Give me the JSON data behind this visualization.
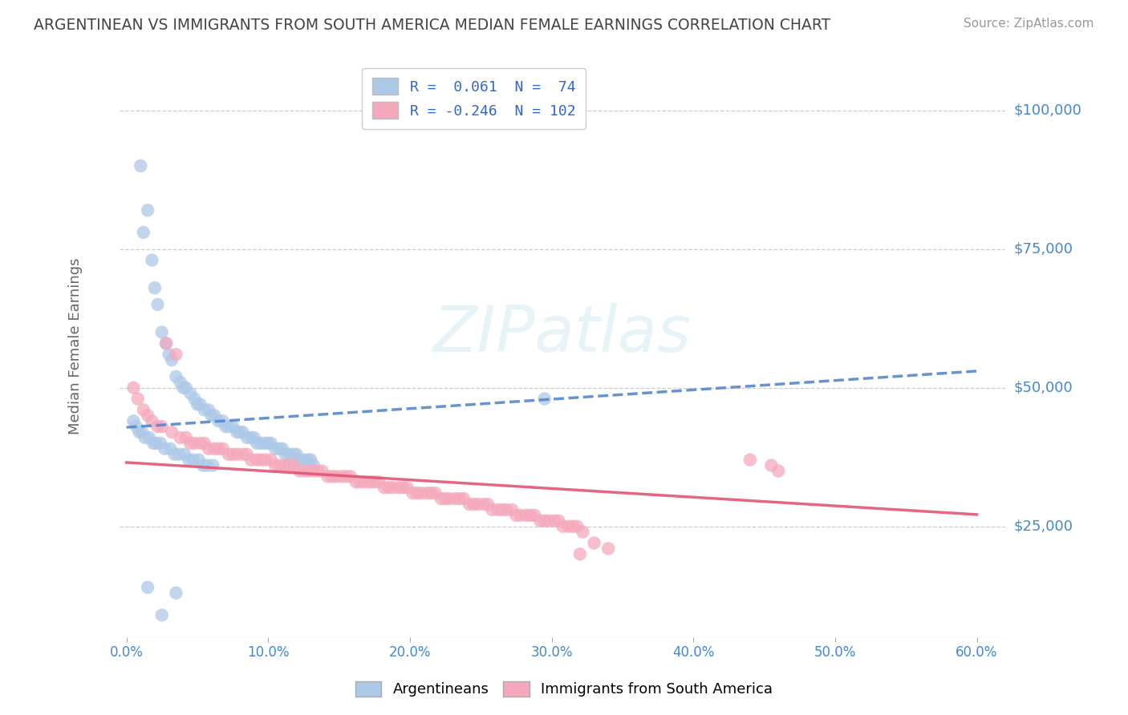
{
  "title": "ARGENTINEAN VS IMMIGRANTS FROM SOUTH AMERICA MEDIAN FEMALE EARNINGS CORRELATION CHART",
  "source": "Source: ZipAtlas.com",
  "ylabel": "Median Female Earnings",
  "xlim": [
    -0.005,
    0.62
  ],
  "ylim": [
    5000,
    110000
  ],
  "yticks": [
    25000,
    50000,
    75000,
    100000
  ],
  "ytick_labels": [
    "$25,000",
    "$50,000",
    "$75,000",
    "$100,000"
  ],
  "xticks": [
    0.0,
    0.1,
    0.2,
    0.3,
    0.4,
    0.5,
    0.6
  ],
  "series1_name": "Argentineans",
  "series1_color": "#adc9e8",
  "series1_R": 0.061,
  "series1_N": 74,
  "series2_name": "Immigrants from South America",
  "series2_color": "#f5a8bc",
  "series2_R": -0.246,
  "series2_N": 102,
  "trend1_color": "#5588cc",
  "trend2_color": "#e05575",
  "trend1_style": "--",
  "trend2_style": "-",
  "background_color": "#ffffff",
  "grid_color": "#cccccc",
  "title_color": "#444444",
  "axis_label_color": "#666666",
  "tick_label_color": "#4488cc",
  "watermark": "ZIPatlas",
  "scatter1_x": [
    0.01,
    0.012,
    0.015,
    0.018,
    0.02,
    0.022,
    0.025,
    0.028,
    0.03,
    0.032,
    0.035,
    0.038,
    0.04,
    0.042,
    0.045,
    0.048,
    0.05,
    0.052,
    0.055,
    0.058,
    0.06,
    0.062,
    0.065,
    0.068,
    0.07,
    0.072,
    0.075,
    0.078,
    0.08,
    0.082,
    0.085,
    0.088,
    0.09,
    0.092,
    0.095,
    0.098,
    0.1,
    0.102,
    0.105,
    0.108,
    0.11,
    0.112,
    0.115,
    0.118,
    0.12,
    0.122,
    0.125,
    0.128,
    0.13,
    0.132,
    0.005,
    0.007,
    0.009,
    0.011,
    0.013,
    0.016,
    0.019,
    0.021,
    0.024,
    0.027,
    0.031,
    0.034,
    0.037,
    0.041,
    0.044,
    0.047,
    0.051,
    0.054,
    0.057,
    0.061,
    0.295,
    0.015,
    0.025,
    0.035
  ],
  "scatter1_y": [
    90000,
    78000,
    82000,
    73000,
    68000,
    65000,
    60000,
    58000,
    56000,
    55000,
    52000,
    51000,
    50000,
    50000,
    49000,
    48000,
    47000,
    47000,
    46000,
    46000,
    45000,
    45000,
    44000,
    44000,
    43000,
    43000,
    43000,
    42000,
    42000,
    42000,
    41000,
    41000,
    41000,
    40000,
    40000,
    40000,
    40000,
    40000,
    39000,
    39000,
    39000,
    38000,
    38000,
    38000,
    38000,
    37000,
    37000,
    37000,
    37000,
    36000,
    44000,
    43000,
    42000,
    42000,
    41000,
    41000,
    40000,
    40000,
    40000,
    39000,
    39000,
    38000,
    38000,
    38000,
    37000,
    37000,
    37000,
    36000,
    36000,
    36000,
    48000,
    14000,
    9000,
    13000
  ],
  "scatter2_x": [
    0.005,
    0.008,
    0.012,
    0.015,
    0.018,
    0.022,
    0.025,
    0.028,
    0.032,
    0.035,
    0.038,
    0.042,
    0.045,
    0.048,
    0.052,
    0.055,
    0.058,
    0.062,
    0.065,
    0.068,
    0.072,
    0.075,
    0.078,
    0.082,
    0.085,
    0.088,
    0.092,
    0.095,
    0.098,
    0.102,
    0.105,
    0.108,
    0.112,
    0.115,
    0.118,
    0.122,
    0.125,
    0.128,
    0.132,
    0.135,
    0.138,
    0.142,
    0.145,
    0.148,
    0.152,
    0.155,
    0.158,
    0.162,
    0.165,
    0.168,
    0.172,
    0.175,
    0.178,
    0.182,
    0.185,
    0.188,
    0.192,
    0.195,
    0.198,
    0.202,
    0.205,
    0.208,
    0.212,
    0.215,
    0.218,
    0.222,
    0.225,
    0.228,
    0.232,
    0.235,
    0.238,
    0.242,
    0.245,
    0.248,
    0.252,
    0.255,
    0.258,
    0.262,
    0.265,
    0.268,
    0.272,
    0.275,
    0.278,
    0.282,
    0.285,
    0.288,
    0.292,
    0.295,
    0.298,
    0.302,
    0.305,
    0.308,
    0.312,
    0.315,
    0.318,
    0.322,
    0.44,
    0.455,
    0.46,
    0.32,
    0.33,
    0.34
  ],
  "scatter2_y": [
    50000,
    48000,
    46000,
    45000,
    44000,
    43000,
    43000,
    58000,
    42000,
    56000,
    41000,
    41000,
    40000,
    40000,
    40000,
    40000,
    39000,
    39000,
    39000,
    39000,
    38000,
    38000,
    38000,
    38000,
    38000,
    37000,
    37000,
    37000,
    37000,
    37000,
    36000,
    36000,
    36000,
    36000,
    36000,
    35000,
    35000,
    35000,
    35000,
    35000,
    35000,
    34000,
    34000,
    34000,
    34000,
    34000,
    34000,
    33000,
    33000,
    33000,
    33000,
    33000,
    33000,
    32000,
    32000,
    32000,
    32000,
    32000,
    32000,
    31000,
    31000,
    31000,
    31000,
    31000,
    31000,
    30000,
    30000,
    30000,
    30000,
    30000,
    30000,
    29000,
    29000,
    29000,
    29000,
    29000,
    28000,
    28000,
    28000,
    28000,
    28000,
    27000,
    27000,
    27000,
    27000,
    27000,
    26000,
    26000,
    26000,
    26000,
    26000,
    25000,
    25000,
    25000,
    25000,
    24000,
    37000,
    36000,
    35000,
    20000,
    22000,
    21000
  ]
}
